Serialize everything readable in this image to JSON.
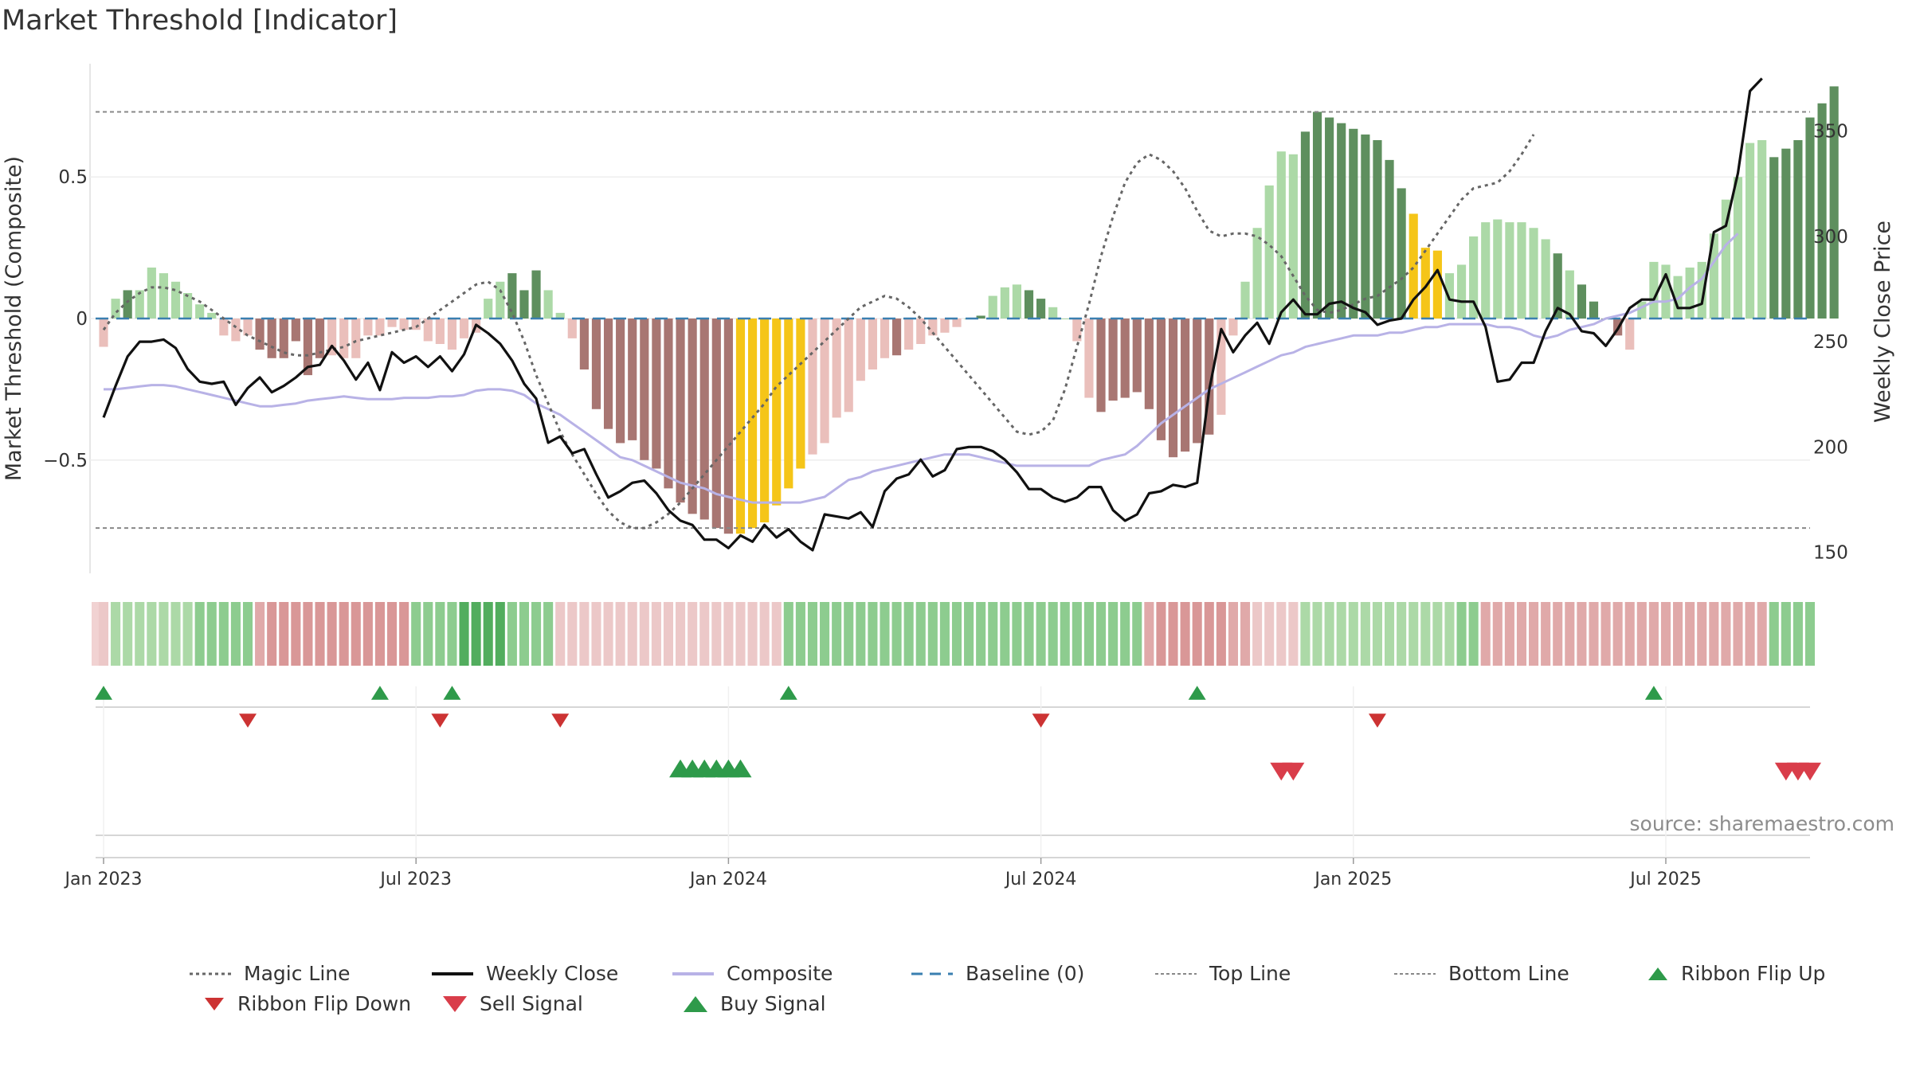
{
  "title": "Market Threshold [Indicator]",
  "source": "source: sharemaestro.com",
  "colors": {
    "dark_green": "#5e8f5e",
    "light_green": "#acd9a7",
    "dark_red": "#a87672",
    "light_red": "#eabfbb",
    "highlight": "#f5c518",
    "close": "#111111",
    "composite": "#b8b2e6",
    "magic": "#666666",
    "baseline": "#3a7fb0",
    "buy": "#2e9a4a",
    "sell": "#d93d4a",
    "flip_up": "#2e9a4a",
    "flip_down": "#cc3333"
  },
  "chart_data": {
    "type": "combo",
    "title": "Market Threshold [Indicator]",
    "left_axis": {
      "label": "Market Threshold (Composite)",
      "ticks": [
        0.5,
        0,
        -0.5
      ],
      "tick_labels": [
        "0.5",
        "0",
        "−0.5"
      ],
      "range": [
        -0.9,
        0.9
      ]
    },
    "right_axis": {
      "label": "Weekly Close Price",
      "ticks": [
        350,
        300,
        250,
        200,
        150
      ],
      "tick_labels": [
        "350",
        "300",
        "250",
        "200",
        "150"
      ],
      "range": [
        140,
        382
      ]
    },
    "x_axis": {
      "ticks": [
        "Jan 2023",
        "Jul 2023",
        "Jan 2024",
        "Jul 2024",
        "Jan 2025",
        "Jul 2025"
      ],
      "tick_weeks": [
        0,
        26,
        52,
        78,
        104,
        130
      ]
    },
    "weeks": 143,
    "top_line": 0.73,
    "bottom_line": -0.74,
    "composite_bars": [
      -0.1,
      0.07,
      0.1,
      0.1,
      0.18,
      0.16,
      0.13,
      0.09,
      0.05,
      0.02,
      -0.06,
      -0.08,
      -0.06,
      -0.11,
      -0.14,
      -0.14,
      -0.08,
      -0.2,
      -0.14,
      -0.13,
      -0.14,
      -0.14,
      -0.06,
      -0.06,
      -0.03,
      -0.04,
      -0.04,
      -0.08,
      -0.09,
      -0.11,
      -0.07,
      -0.05,
      0.07,
      0.13,
      0.16,
      0.1,
      0.17,
      0.1,
      0.02,
      -0.07,
      -0.18,
      -0.32,
      -0.39,
      -0.44,
      -0.43,
      -0.5,
      -0.53,
      -0.6,
      -0.65,
      -0.69,
      -0.71,
      -0.74,
      -0.76,
      -0.76,
      -0.74,
      -0.72,
      -0.66,
      -0.6,
      -0.53,
      -0.48,
      -0.44,
      -0.35,
      -0.33,
      -0.22,
      -0.18,
      -0.14,
      -0.13,
      -0.11,
      -0.09,
      -0.06,
      -0.05,
      -0.03,
      0.0,
      0.01,
      0.08,
      0.11,
      0.12,
      0.1,
      0.07,
      0.04,
      0.0,
      -0.08,
      -0.28,
      -0.33,
      -0.29,
      -0.28,
      -0.26,
      -0.32,
      -0.43,
      -0.49,
      -0.47,
      -0.44,
      -0.41,
      -0.34,
      -0.06,
      0.13,
      0.32,
      0.47,
      0.59,
      0.58,
      0.66,
      0.73,
      0.71,
      0.69,
      0.67,
      0.65,
      0.63,
      0.56,
      0.46,
      0.37,
      0.25,
      0.24,
      0.16,
      0.19,
      0.29,
      0.34,
      0.35,
      0.34,
      0.34,
      0.32,
      0.28,
      0.23,
      0.17,
      0.12,
      0.06,
      0.0,
      -0.06,
      -0.11,
      0.06,
      0.2,
      0.19,
      0.15,
      0.18,
      0.2,
      0.3,
      0.42,
      0.5,
      0.62,
      0.63,
      0.57,
      0.6,
      0.63,
      0.71,
      0.76,
      0.82
    ],
    "bar_shade": "d=dark, l=light, y=highlight; color by sign",
    "bar_shades": "lldllllllllllddddddllllllllllllllldddllldddddddddddddyyyyyyllllllldlllllldlllddllllddddddddddllllllldddddddddyyyllllllllldlddddlllllllllllldddddddlllllllllyyy",
    "series": [
      {
        "name": "Weekly Close",
        "axis": "right",
        "values": [
          214,
          229,
          243,
          250,
          250,
          251,
          247,
          237,
          231,
          230,
          231,
          220,
          228,
          233,
          226,
          229,
          233,
          238,
          239,
          248,
          241,
          232,
          240,
          227,
          245,
          240,
          243,
          238,
          243,
          236,
          244,
          258,
          254,
          249,
          241,
          230,
          223,
          202,
          205,
          197,
          199,
          187,
          176,
          179,
          183,
          184,
          178,
          170,
          165,
          163,
          156,
          156,
          152,
          158,
          155,
          163,
          157,
          161,
          155,
          151,
          168,
          167,
          166,
          169,
          162,
          179,
          185,
          187,
          194,
          186,
          189,
          199,
          200,
          200,
          198,
          194,
          188,
          180,
          180,
          176,
          174,
          176,
          181,
          181,
          170,
          165,
          168,
          178,
          179,
          182,
          181,
          183,
          227,
          256,
          245,
          253,
          259,
          249,
          264,
          270,
          263,
          263,
          268,
          269,
          266,
          264,
          258,
          260,
          261,
          270,
          276,
          284,
          270,
          269,
          269,
          257,
          231,
          232,
          240,
          240,
          255,
          266,
          263,
          255,
          254,
          248,
          256,
          266,
          270,
          270,
          282,
          266,
          266,
          268,
          302,
          305,
          330,
          369,
          375
        ]
      },
      {
        "name": "Composite",
        "axis": "left",
        "values": [
          -0.25,
          -0.25,
          -0.245,
          -0.24,
          -0.235,
          -0.235,
          -0.24,
          -0.25,
          -0.26,
          -0.27,
          -0.28,
          -0.29,
          -0.3,
          -0.31,
          -0.31,
          -0.305,
          -0.3,
          -0.29,
          -0.285,
          -0.28,
          -0.275,
          -0.28,
          -0.285,
          -0.285,
          -0.285,
          -0.28,
          -0.28,
          -0.28,
          -0.275,
          -0.275,
          -0.27,
          -0.255,
          -0.25,
          -0.25,
          -0.255,
          -0.27,
          -0.3,
          -0.32,
          -0.34,
          -0.37,
          -0.4,
          -0.43,
          -0.46,
          -0.49,
          -0.5,
          -0.52,
          -0.54,
          -0.56,
          -0.58,
          -0.59,
          -0.6,
          -0.62,
          -0.63,
          -0.64,
          -0.65,
          -0.65,
          -0.65,
          -0.65,
          -0.65,
          -0.64,
          -0.63,
          -0.6,
          -0.57,
          -0.56,
          -0.54,
          -0.53,
          -0.52,
          -0.51,
          -0.5,
          -0.49,
          -0.48,
          -0.48,
          -0.48,
          -0.49,
          -0.5,
          -0.51,
          -0.52,
          -0.52,
          -0.52,
          -0.52,
          -0.52,
          -0.52,
          -0.52,
          -0.5,
          -0.49,
          -0.48,
          -0.45,
          -0.41,
          -0.37,
          -0.34,
          -0.31,
          -0.28,
          -0.25,
          -0.23,
          -0.21,
          -0.19,
          -0.17,
          -0.15,
          -0.13,
          -0.12,
          -0.1,
          -0.09,
          -0.08,
          -0.07,
          -0.06,
          -0.06,
          -0.06,
          -0.05,
          -0.05,
          -0.04,
          -0.03,
          -0.03,
          -0.02,
          -0.02,
          -0.02,
          -0.02,
          -0.03,
          -0.03,
          -0.04,
          -0.06,
          -0.07,
          -0.06,
          -0.04,
          -0.03,
          -0.02,
          0.0,
          0.01,
          0.02,
          0.04,
          0.06,
          0.06,
          0.07,
          0.11,
          0.14,
          0.2,
          0.26,
          0.3
        ]
      },
      {
        "name": "Magic Line",
        "axis": "left",
        "values": [
          -0.04,
          0.02,
          0.06,
          0.09,
          0.11,
          0.11,
          0.1,
          0.08,
          0.06,
          0.03,
          0.0,
          -0.03,
          -0.06,
          -0.08,
          -0.1,
          -0.12,
          -0.13,
          -0.13,
          -0.12,
          -0.11,
          -0.1,
          -0.08,
          -0.07,
          -0.06,
          -0.05,
          -0.04,
          -0.03,
          0.0,
          0.03,
          0.06,
          0.09,
          0.12,
          0.13,
          0.1,
          0.02,
          -0.08,
          -0.2,
          -0.3,
          -0.4,
          -0.48,
          -0.55,
          -0.62,
          -0.68,
          -0.72,
          -0.74,
          -0.74,
          -0.72,
          -0.69,
          -0.65,
          -0.6,
          -0.55,
          -0.5,
          -0.45,
          -0.4,
          -0.35,
          -0.3,
          -0.24,
          -0.2,
          -0.16,
          -0.12,
          -0.08,
          -0.04,
          0.0,
          0.04,
          0.06,
          0.08,
          0.07,
          0.04,
          0.0,
          -0.05,
          -0.1,
          -0.15,
          -0.2,
          -0.25,
          -0.3,
          -0.35,
          -0.4,
          -0.41,
          -0.4,
          -0.36,
          -0.25,
          -0.1,
          0.05,
          0.22,
          0.36,
          0.48,
          0.55,
          0.58,
          0.56,
          0.52,
          0.46,
          0.38,
          0.31,
          0.29,
          0.3,
          0.3,
          0.29,
          0.26,
          0.22,
          0.15,
          0.08,
          0.03,
          0.02,
          0.03,
          0.05,
          0.07,
          0.08,
          0.11,
          0.14,
          0.18,
          0.24,
          0.3,
          0.36,
          0.42,
          0.46,
          0.47,
          0.48,
          0.52,
          0.58,
          0.65
        ]
      }
    ],
    "ribbon": {
      "description": "weekly colored strip; letters g=green, r=red, darker = stronger",
      "strength": "1111111122222233333333333322223333222211111111111111111112222222222222222222222222222222333333221111111111111111122222222222222222222222222222222",
      "signs": "rggggggggggggrrrrrrrrrrrrrggggggggggggrrrrrrrrrrrrrrrrrrrggggggggggggggggggggggggggggggrrrrrrrrrrrrrgggggggggggggggrrrrrrrrrrrrrrrrrrrrrrrrggggggggggggggg"
    },
    "ribbon_flip_up_weeks": [
      0,
      23,
      29,
      57,
      91,
      129
    ],
    "ribbon_flip_down_weeks": [
      12,
      28,
      38,
      78,
      106
    ],
    "buy_signal_weeks": [
      48,
      49,
      50,
      51,
      52,
      53
    ],
    "sell_signal_weeks": [
      98,
      99,
      140,
      141,
      142
    ]
  },
  "legend": [
    {
      "label": "Magic Line",
      "icon": "dotted-line-icon"
    },
    {
      "label": "Weekly Close",
      "icon": "solid-line-icon"
    },
    {
      "label": "Composite",
      "icon": "lavender-line-icon"
    },
    {
      "label": "Baseline (0)",
      "icon": "dashed-line-icon"
    },
    {
      "label": "Top Line",
      "icon": "dotted-line-icon"
    },
    {
      "label": "Bottom Line",
      "icon": "dotted-line-icon"
    },
    {
      "label": "Ribbon Flip Up",
      "icon": "up-triangle-icon"
    },
    {
      "label": "Ribbon Flip Down",
      "icon": "down-triangle-icon"
    },
    {
      "label": "Sell Signal",
      "icon": "down-triangle-icon"
    },
    {
      "label": "Buy Signal",
      "icon": "up-triangle-icon"
    }
  ]
}
